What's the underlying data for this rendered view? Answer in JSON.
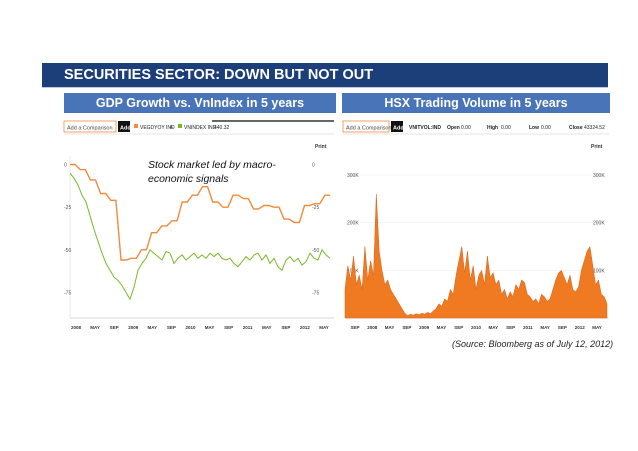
{
  "slide": {
    "title": "SECURITIES SECTOR: DOWN BUT NOT OUT",
    "left_header": "GDP Growth vs. VnIndex in 5 years",
    "right_header": "HSX Trading Volume in 5 years",
    "source": "(Source: Bloomberg as of July 12, 2012)",
    "annotation_line1": "Stock market led by macro-",
    "annotation_line2": "economic signals"
  },
  "left_toolbar": {
    "add_comparison": "Add a Comparison",
    "add": "Add",
    "ticker1": "VEGDYOY IND",
    "ticker1_suffix": "4",
    "ticker2": "VNINDEX IND",
    "ticker2_value": "440.32",
    "print": "Print"
  },
  "right_toolbar": {
    "add_comparison": "Add a Comparison",
    "add": "Add",
    "ticker": "VNITVOL:IND",
    "open_label": "Open",
    "open_value": "0.00",
    "high_label": "High",
    "high_value": "0.00",
    "low_label": "Low",
    "low_value": "0.00",
    "close_label": "Close",
    "close_value": "43324.52",
    "print": "Print"
  },
  "colors": {
    "title_bar": "#1c3f7a",
    "panel_header": "#4a74b8",
    "gdp_line": "#f08a3c",
    "vnindex_line": "#7ab829",
    "volume_area": "#f07a22"
  },
  "chart_data": [
    {
      "type": "line",
      "x_ticks": [
        "2008",
        "MAY",
        "SEP",
        "2009",
        "MAY",
        "SEP",
        "2010",
        "MAY",
        "SEP",
        "2011",
        "MAY",
        "SEP",
        "2012",
        "MAY"
      ],
      "y_ticks_left": [
        "0",
        "-25",
        "-50",
        "-75"
      ],
      "y_ticks_right": [
        "0",
        "-25",
        "-50",
        "-75"
      ],
      "ylim": [
        -90,
        5
      ],
      "series": [
        {
          "name": "VEGDYOY IND",
          "values": [
            0,
            0,
            -3,
            -3,
            -9,
            -9,
            -17,
            -17,
            -21,
            -21,
            -56,
            -56,
            -55,
            -55,
            -50,
            -50,
            -40,
            -40,
            -36,
            -36,
            -33,
            -33,
            -22,
            -22,
            -18,
            -18,
            -13,
            -13,
            -22,
            -22,
            -25,
            -25,
            -18,
            -18,
            -20,
            -20,
            -26,
            -26,
            -24,
            -24,
            -25,
            -25,
            -32,
            -32,
            -34,
            -34,
            -24,
            -24,
            -23,
            -23,
            -18,
            -18
          ]
        },
        {
          "name": "VNINDEX IND",
          "values": [
            -5,
            -8,
            -12,
            -18,
            -22,
            -30,
            -38,
            -45,
            -52,
            -58,
            -62,
            -66,
            -68,
            -71,
            -75,
            -79,
            -72,
            -62,
            -58,
            -55,
            -50,
            -52,
            -54,
            -56,
            -51,
            -52,
            -58,
            -55,
            -53,
            -56,
            -54,
            -52,
            -55,
            -53,
            -55,
            -52,
            -54,
            -52,
            -55,
            -56,
            -55,
            -58,
            -60,
            -57,
            -54,
            -56,
            -53,
            -52,
            -56,
            -53,
            -58,
            -55,
            -60,
            -62,
            -56,
            -54,
            -57,
            -55,
            -59,
            -57,
            -52,
            -55,
            -56,
            -50,
            -53,
            -55
          ]
        }
      ]
    },
    {
      "type": "area",
      "x_ticks": [
        "SEP",
        "2008",
        "MAY",
        "SEP",
        "2009",
        "MAY",
        "SEP",
        "2010",
        "MAY",
        "SEP",
        "2011",
        "MAY",
        "SEP",
        "2012",
        "MAY"
      ],
      "y_ticks": [
        "300K",
        "200K",
        "100K"
      ],
      "ylim": [
        0,
        340000
      ],
      "series": [
        {
          "name": "VNITVOL:IND",
          "values": [
            60000,
            110000,
            80000,
            130000,
            70000,
            90000,
            60000,
            150000,
            80000,
            120000,
            90000,
            260000,
            140000,
            100000,
            70000,
            80000,
            60000,
            50000,
            40000,
            30000,
            20000,
            10000,
            5000,
            8000,
            6000,
            9000,
            7000,
            10000,
            8000,
            12000,
            9000,
            15000,
            20000,
            30000,
            25000,
            40000,
            35000,
            60000,
            50000,
            90000,
            120000,
            150000,
            95000,
            140000,
            80000,
            110000,
            60000,
            90000,
            100000,
            70000,
            130000,
            85000,
            95000,
            70000,
            80000,
            50000,
            60000,
            40000,
            55000,
            45000,
            70000,
            60000,
            80000,
            75000,
            50000,
            45000,
            35000,
            40000,
            30000,
            50000,
            45000,
            35000,
            40000,
            60000,
            80000,
            95000,
            100000,
            85000,
            70000,
            90000,
            60000,
            55000,
            65000,
            100000,
            120000,
            140000,
            150000,
            110000,
            70000,
            80000,
            50000,
            45000,
            30000
          ]
        }
      ]
    }
  ]
}
